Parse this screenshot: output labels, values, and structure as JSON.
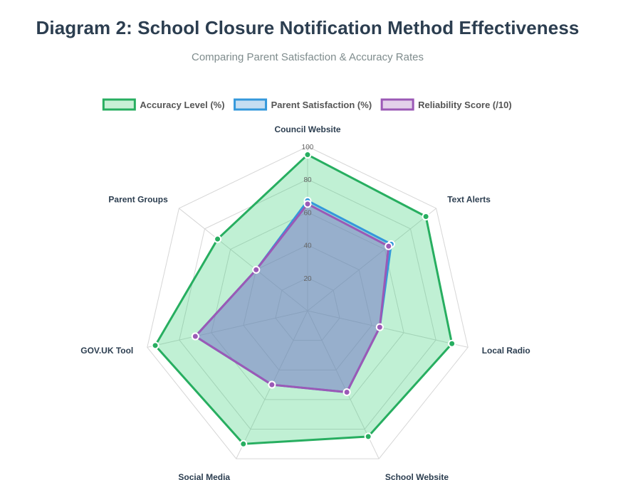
{
  "header": {
    "title": "Diagram 2: School Closure Notification Method Effectiveness",
    "subtitle": "Comparing Parent Satisfaction & Accuracy Rates"
  },
  "chart_data": {
    "type": "radar",
    "title": "Diagram 2: School Closure Notification Method Effectiveness",
    "subtitle": "Comparing Parent Satisfaction & Accuracy Rates",
    "categories": [
      "Council Website",
      "Text Alerts",
      "Local Radio",
      "School Website",
      "Social Media",
      "GOV.UK Tool",
      "Parent Groups"
    ],
    "rlim": [
      0,
      100
    ],
    "ticks": [
      20,
      40,
      60,
      80,
      100
    ],
    "grid": true,
    "legend_position": "top",
    "series": [
      {
        "name": "Accuracy Level (%)",
        "values": [
          95,
          92,
          90,
          85,
          90,
          95,
          70
        ],
        "color": "#27ae60",
        "fill": "rgba(46, 204, 113, 0.3)",
        "legend_fill": "#c8f0d6"
      },
      {
        "name": "Parent Satisfaction (%)",
        "values": [
          67,
          65,
          45,
          55,
          50,
          70,
          40
        ],
        "color": "#3498db",
        "fill": "rgba(52, 152, 219, 0.3)",
        "legend_fill": "#c6def2"
      },
      {
        "name": "Reliability Score (/10)",
        "values": [
          65,
          63,
          45,
          55,
          50,
          70,
          40
        ],
        "color": "#9b59b6",
        "fill": "rgba(155, 89, 182, 0.3)",
        "legend_fill": "#e3d1ea"
      }
    ]
  }
}
